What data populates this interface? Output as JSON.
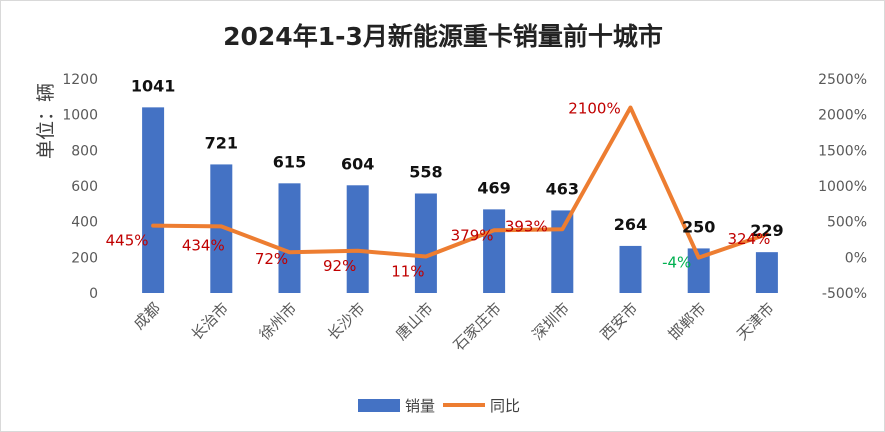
{
  "chart_data": {
    "type": "bar",
    "title": "2024年1-3月新能源重卡销量前十城市",
    "ylabel": "单位：辆",
    "ylim": [
      0,
      1200
    ],
    "y_ticks": [
      "1200",
      "1000",
      "800",
      "600",
      "400",
      "200",
      "0"
    ],
    "y2lim": [
      -500,
      2500
    ],
    "y2_ticks": [
      "2500%",
      "2000%",
      "1500%",
      "1000%",
      "500%",
      "0%",
      "-500%"
    ],
    "categories": [
      "成都",
      "长治市",
      "徐州市",
      "长沙市",
      "唐山市",
      "石家庄市",
      "深圳市",
      "西安市",
      "邯郸市",
      "天津市"
    ],
    "series": [
      {
        "name": "销量",
        "type": "bar",
        "axis": "left",
        "color": "#4472c4",
        "values": [
          1041,
          721,
          615,
          604,
          558,
          469,
          463,
          264,
          250,
          229
        ],
        "labels": [
          "1041",
          "721",
          "615",
          "604",
          "558",
          "469",
          "463",
          "264",
          "250",
          "229"
        ]
      },
      {
        "name": "同比",
        "type": "line",
        "axis": "right",
        "color": "#ed7d31",
        "values": [
          445,
          434,
          72,
          92,
          11,
          379,
          393,
          2100,
          -4,
          324
        ],
        "labels": [
          "445%",
          "434%",
          "72%",
          "92%",
          "11%",
          "379%",
          "393%",
          "2100%",
          "-4%",
          "324%"
        ],
        "label_colors": [
          "#c00000",
          "#c00000",
          "#c00000",
          "#c00000",
          "#c00000",
          "#c00000",
          "#c00000",
          "#c00000",
          "#00b050",
          "#c00000"
        ]
      }
    ],
    "legend": "bottom",
    "grid": false
  }
}
